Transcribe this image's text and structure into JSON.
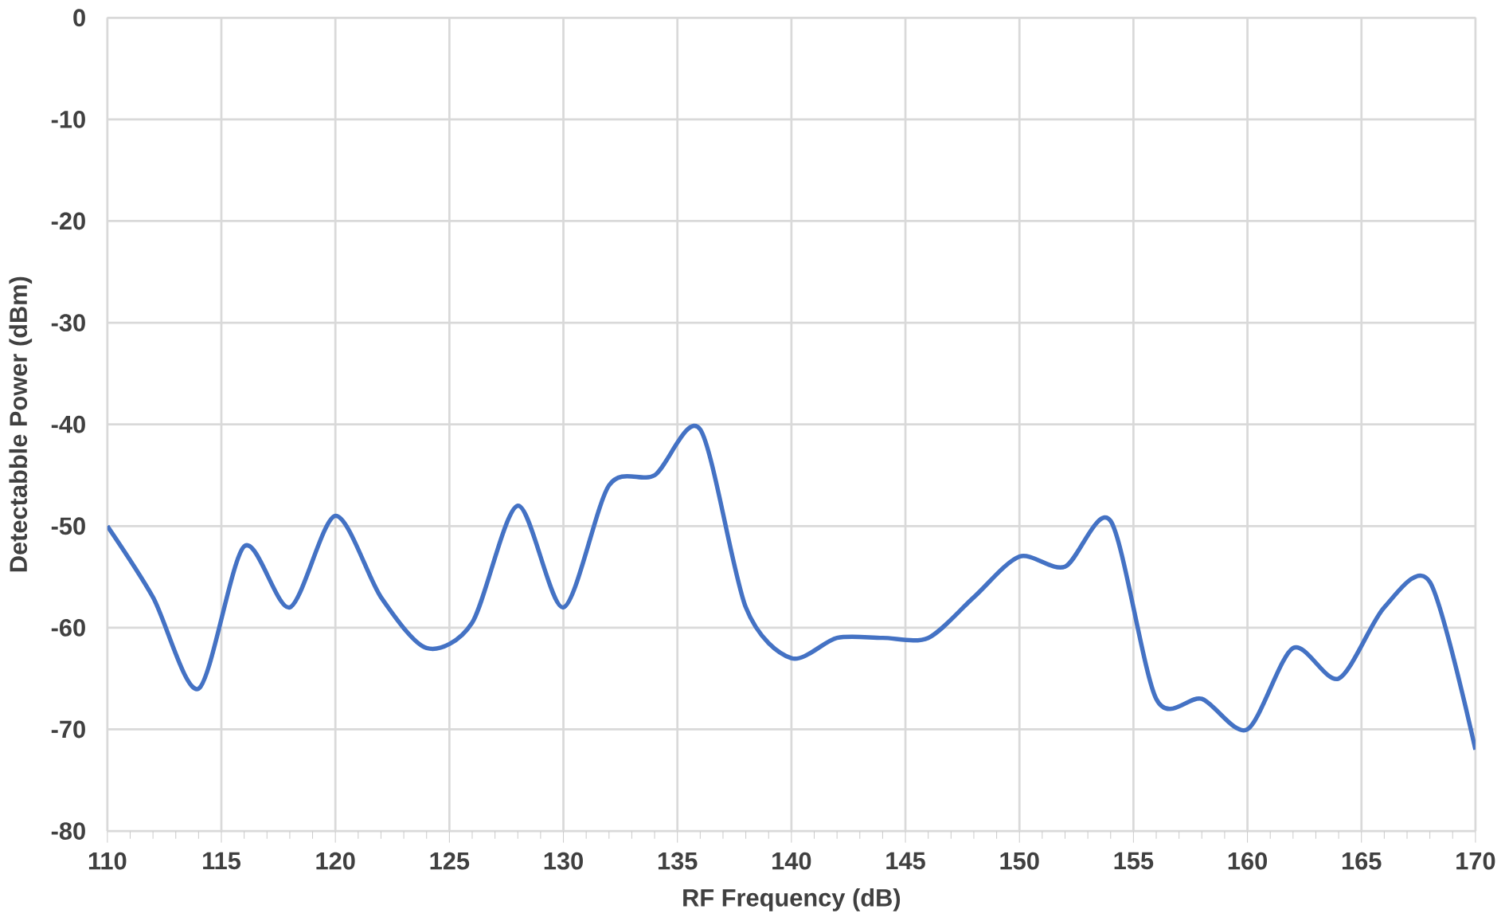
{
  "chart_data": {
    "type": "line",
    "xlabel": "RF Frequency (dB)",
    "ylabel": "Detectabble Power (dBm)",
    "x": [
      110,
      112,
      114,
      116,
      118,
      120,
      122,
      124,
      126,
      128,
      130,
      132,
      134,
      136,
      138,
      140,
      142,
      144,
      146,
      148,
      150,
      152,
      154,
      156,
      158,
      160,
      162,
      164,
      166,
      168,
      170
    ],
    "series": [
      {
        "color": "#4472c4",
        "values": [
          -50,
          -57,
          -66,
          -52,
          -58,
          -49,
          -57,
          -62,
          -59.5,
          -48,
          -58,
          -46,
          -45,
          -40.5,
          -58,
          -63,
          -61,
          -61,
          -61,
          -57,
          -53,
          -54,
          -49.5,
          -67,
          -67,
          -70,
          -62,
          -65,
          -58,
          -55.5,
          -72
        ]
      }
    ],
    "xlim": [
      110,
      170
    ],
    "xticks": [
      110,
      115,
      120,
      125,
      130,
      135,
      140,
      145,
      150,
      155,
      160,
      165,
      170
    ],
    "ylim": [
      -80,
      0
    ],
    "yticks": [
      -80,
      -70,
      -60,
      -50,
      -40,
      -30,
      -20,
      -10,
      0
    ],
    "grid": true,
    "marker": "none",
    "line_style": "solid"
  }
}
